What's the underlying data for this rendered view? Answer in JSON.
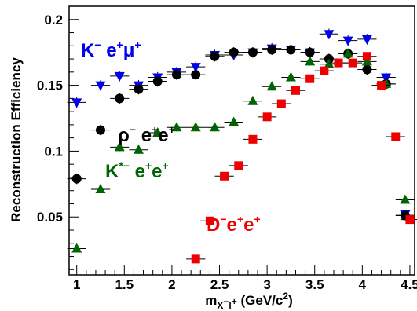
{
  "chart_data": {
    "type": "scatter",
    "title": "",
    "xlabel": {
      "main": "m",
      "sub": "X",
      "sub_sup1": "−",
      "sub2": "l",
      "sub_sup2": "+",
      "unit": " (GeV/c",
      "unit_sup": "2",
      "unit_end": ")"
    },
    "ylabel": "Reconstruction Efficiency",
    "xlim": [
      0.92,
      4.55
    ],
    "ylim": [
      0.006,
      0.21
    ],
    "x_ticks": [
      1,
      1.5,
      2,
      2.5,
      3,
      3.5,
      4,
      4.5
    ],
    "x_tick_labels": [
      "1",
      "1.5",
      "2",
      "2.5",
      "3",
      "3.5",
      "4",
      "4.5"
    ],
    "y_ticks": [
      0.05,
      0.1,
      0.15,
      0.2
    ],
    "y_tick_labels": [
      "0.05",
      "0.1",
      "0.15",
      "0.2"
    ],
    "grid": false,
    "legend_placement": "inline labels",
    "x_half_bin": 0.1,
    "series": [
      {
        "name": "K−e+μ+",
        "label": {
          "base": "K",
          "s1": "−",
          "t1": " e",
          "s2": "+",
          "t2": "μ",
          "s3": "+"
        },
        "marker": "triangle-down",
        "color": "#0000ee",
        "x": [
          1.0,
          1.25,
          1.45,
          1.65,
          1.85,
          2.05,
          2.25,
          2.45,
          2.65,
          2.85,
          3.05,
          3.25,
          3.45,
          3.65,
          3.85,
          4.05,
          4.25,
          4.45
        ],
        "y": [
          0.137,
          0.15,
          0.157,
          0.15,
          0.156,
          0.16,
          0.164,
          0.173,
          0.173,
          0.175,
          0.178,
          0.177,
          0.175,
          0.189,
          0.184,
          0.185,
          0.156,
          0.052
        ],
        "yerr": [
          0.004,
          0.004,
          0.004,
          0.004,
          0.004,
          0.004,
          0.004,
          0.004,
          0.004,
          0.004,
          0.004,
          0.004,
          0.004,
          0.004,
          0.004,
          0.004,
          0.004,
          0.003
        ]
      },
      {
        "name": "ρ−e+e+",
        "label": {
          "base": "ρ",
          "s1": "−",
          "t1": " e",
          "s2": "+",
          "t2": "e",
          "s3": "+"
        },
        "marker": "circle",
        "color": "#000000",
        "x": [
          1.0,
          1.25,
          1.45,
          1.65,
          1.85,
          2.05,
          2.25,
          2.45,
          2.65,
          2.85,
          3.05,
          3.25,
          3.45,
          3.65,
          3.85,
          4.05,
          4.25,
          4.45
        ],
        "y": [
          0.079,
          0.116,
          0.14,
          0.147,
          0.153,
          0.158,
          0.158,
          0.172,
          0.175,
          0.175,
          0.177,
          0.177,
          0.175,
          0.17,
          0.174,
          0.162,
          0.151,
          0.051
        ],
        "yerr": [
          0.004,
          0.004,
          0.004,
          0.004,
          0.004,
          0.004,
          0.004,
          0.004,
          0.004,
          0.004,
          0.004,
          0.004,
          0.004,
          0.004,
          0.004,
          0.004,
          0.004,
          0.003
        ]
      },
      {
        "name": "K*−e+e+",
        "label": {
          "base": "K",
          "s1": "*−",
          "t1": " e",
          "s2": "+",
          "t2": "e",
          "s3": "+"
        },
        "marker": "triangle-up",
        "color": "#006400",
        "x": [
          1.0,
          1.25,
          1.45,
          1.65,
          1.85,
          2.05,
          2.25,
          2.45,
          2.65,
          2.85,
          3.05,
          3.25,
          3.45,
          3.65,
          3.85,
          4.05,
          4.25,
          4.45
        ],
        "y": [
          0.026,
          0.071,
          0.103,
          0.101,
          0.114,
          0.118,
          0.118,
          0.118,
          0.122,
          0.138,
          0.149,
          0.156,
          0.168,
          0.166,
          0.174,
          0.168,
          0.151,
          0.063
        ],
        "yerr": [
          0.003,
          0.003,
          0.003,
          0.003,
          0.003,
          0.003,
          0.003,
          0.003,
          0.003,
          0.003,
          0.003,
          0.003,
          0.003,
          0.003,
          0.003,
          0.003,
          0.003,
          0.003
        ]
      },
      {
        "name": "D−e+e+",
        "label": {
          "base": "D",
          "s1": "−",
          "t1": "e",
          "s2": "+",
          "t2": "e",
          "s3": "+"
        },
        "marker": "square",
        "color": "#ee0000",
        "x": [
          2.25,
          2.4,
          2.55,
          2.7,
          2.85,
          3.0,
          3.15,
          3.3,
          3.45,
          3.6,
          3.75,
          3.9,
          4.05,
          4.2,
          4.35,
          4.5
        ],
        "y": [
          0.018,
          0.047,
          0.081,
          0.089,
          0.109,
          0.126,
          0.136,
          0.146,
          0.155,
          0.161,
          0.167,
          0.167,
          0.172,
          0.15,
          0.111,
          0.048
        ],
        "yerr": [
          0.002,
          0.002,
          0.002,
          0.002,
          0.002,
          0.002,
          0.002,
          0.002,
          0.002,
          0.002,
          0.002,
          0.002,
          0.002,
          0.002,
          0.002,
          0.002
        ]
      }
    ]
  }
}
